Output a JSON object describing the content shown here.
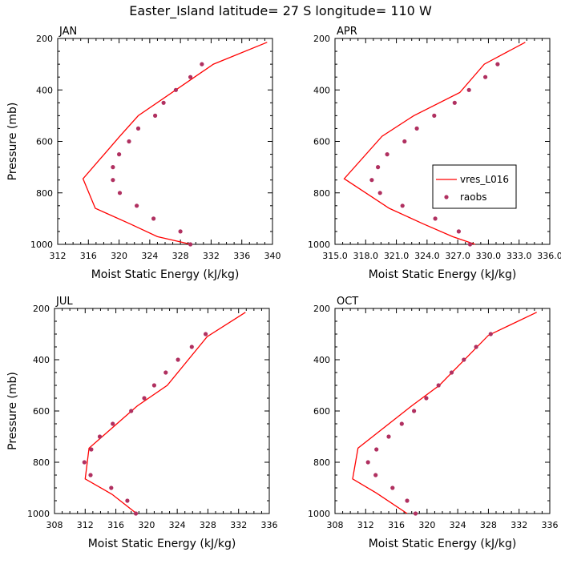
{
  "figure": {
    "title": "Easter_Island  latitude= 27 S longitude= 110 W"
  },
  "legend": {
    "position": "inside-right (APR panel)",
    "model_label": "vres_L016",
    "obs_label": "raobs"
  },
  "colors": {
    "model_line": "#ff0000",
    "obs_marker": "#b03060",
    "axis": "#000000"
  },
  "chart_data": [
    {
      "type": "line",
      "title": "JAN",
      "xlabel": "Moist Static Energy (kJ/kg)",
      "ylabel": "Pressure (mb)",
      "xlim": [
        312,
        340
      ],
      "ylim": [
        1000,
        200
      ],
      "xticks": [
        312,
        316,
        320,
        324,
        328,
        332,
        336,
        340
      ],
      "xtick_labels": [
        "312",
        "316",
        "320",
        "324",
        "328",
        "332",
        "336",
        "340"
      ],
      "yticks": [
        200,
        400,
        600,
        800,
        1000
      ],
      "ytick_labels": [
        "200",
        "400",
        "600",
        "800",
        "1000"
      ],
      "series": [
        {
          "name": "vres_L016",
          "kind": "line",
          "x": [
            329.4,
            325.0,
            321.4,
            316.9,
            315.3,
            320.1,
            322.5,
            332.3,
            339.3
          ],
          "y": [
            1000,
            970,
            920,
            860,
            745,
            580,
            500,
            300,
            215
          ]
        },
        {
          "name": "raobs",
          "kind": "markers",
          "x": [
            329.3,
            328.0,
            324.5,
            322.3,
            320.1,
            319.2,
            319.2,
            320.0,
            321.3,
            322.5,
            324.7,
            325.8,
            327.4,
            329.3,
            330.8
          ],
          "y": [
            1000,
            950,
            900,
            850,
            800,
            750,
            700,
            650,
            600,
            550,
            500,
            450,
            400,
            350,
            300
          ]
        }
      ]
    },
    {
      "type": "line",
      "title": "APR",
      "xlabel": "Moist Static Energy (kJ/kg)",
      "ylabel": "Pressure (mb)",
      "xlim": [
        315,
        336
      ],
      "ylim": [
        1000,
        200
      ],
      "xticks": [
        315,
        318,
        321,
        324,
        327,
        330,
        333,
        336
      ],
      "xtick_labels": [
        "315.0",
        "318.0",
        "321.0",
        "324.0",
        "327.0",
        "330.0",
        "333.0",
        "336.0"
      ],
      "yticks": [
        200,
        400,
        600,
        800,
        1000
      ],
      "ytick_labels": [
        "200",
        "400",
        "600",
        "800",
        "1000"
      ],
      "series": [
        {
          "name": "vres_L016",
          "kind": "line",
          "x": [
            328.7,
            326.5,
            323.6,
            320.3,
            315.9,
            319.6,
            322.7,
            327.2,
            329.6,
            333.6
          ],
          "y": [
            1000,
            970,
            920,
            860,
            745,
            580,
            500,
            410,
            300,
            215
          ]
        },
        {
          "name": "raobs",
          "kind": "markers",
          "x": [
            328.2,
            327.1,
            324.8,
            321.6,
            319.4,
            318.6,
            319.2,
            320.1,
            321.8,
            323.0,
            324.7,
            326.7,
            328.1,
            329.7,
            330.9
          ],
          "y": [
            1000,
            950,
            900,
            850,
            800,
            750,
            700,
            650,
            600,
            550,
            500,
            450,
            400,
            350,
            300
          ]
        }
      ]
    },
    {
      "type": "line",
      "title": "JUL",
      "xlabel": "Moist Static Energy (kJ/kg)",
      "ylabel": "Pressure (mb)",
      "xlim": [
        308,
        336
      ],
      "ylim": [
        1000,
        200
      ],
      "xticks": [
        308,
        312,
        316,
        320,
        324,
        328,
        332,
        336
      ],
      "xtick_labels": [
        "308",
        "312",
        "316",
        "320",
        "324",
        "328",
        "332",
        "336"
      ],
      "yticks": [
        200,
        400,
        600,
        800,
        1000
      ],
      "ytick_labels": [
        "200",
        "400",
        "600",
        "800",
        "1000"
      ],
      "series": [
        {
          "name": "vres_L016",
          "kind": "line",
          "x": [
            318.7,
            315.5,
            312.0,
            312.5,
            318.8,
            322.7,
            327.9,
            332.9
          ],
          "y": [
            1000,
            925,
            865,
            745,
            580,
            500,
            310,
            215
          ]
        },
        {
          "name": "raobs",
          "kind": "markers",
          "x": [
            318.6,
            317.5,
            315.4,
            312.7,
            311.9,
            312.8,
            313.9,
            315.6,
            318.0,
            319.7,
            321.0,
            322.5,
            324.1,
            325.9,
            327.7
          ],
          "y": [
            1000,
            950,
            900,
            850,
            800,
            750,
            700,
            650,
            600,
            550,
            500,
            450,
            400,
            350,
            300
          ]
        }
      ]
    },
    {
      "type": "line",
      "title": "OCT",
      "xlabel": "Moist Static Energy (kJ/kg)",
      "ylabel": "Pressure (mb)",
      "xlim": [
        308,
        336
      ],
      "ylim": [
        1000,
        200
      ],
      "xticks": [
        308,
        312,
        316,
        320,
        324,
        328,
        332,
        336
      ],
      "xtick_labels": [
        "308",
        "312",
        "316",
        "320",
        "324",
        "328",
        "332",
        "336"
      ],
      "yticks": [
        200,
        400,
        600,
        800,
        1000
      ],
      "ytick_labels": [
        "200",
        "400",
        "600",
        "800",
        "1000"
      ],
      "series": [
        {
          "name": "vres_L016",
          "kind": "line",
          "x": [
            317.4,
            313.4,
            310.3,
            311.0,
            318.0,
            321.6,
            328.0,
            334.3
          ],
          "y": [
            1000,
            920,
            865,
            745,
            580,
            500,
            305,
            215
          ]
        },
        {
          "name": "raobs",
          "kind": "markers",
          "x": [
            318.5,
            317.4,
            315.5,
            313.3,
            312.3,
            313.4,
            315.0,
            316.7,
            318.3,
            319.9,
            321.5,
            323.2,
            324.8,
            326.4,
            328.3
          ],
          "y": [
            1000,
            950,
            900,
            850,
            800,
            750,
            700,
            650,
            600,
            550,
            500,
            450,
            400,
            350,
            300
          ]
        }
      ]
    }
  ]
}
